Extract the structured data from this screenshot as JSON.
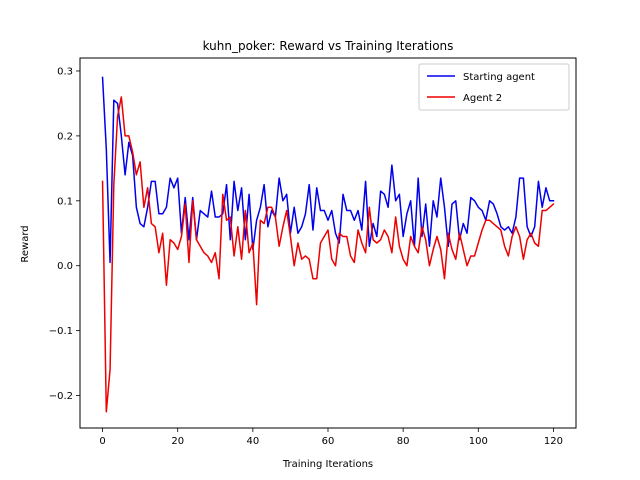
{
  "chart_data": {
    "type": "line",
    "title": "kuhn_poker: Reward vs Training Iterations",
    "xlabel": "Training Iterations",
    "ylabel": "Reward",
    "xlim": [
      -6,
      126
    ],
    "ylim": [
      -0.25,
      0.32
    ],
    "xticks": [
      0,
      20,
      40,
      60,
      80,
      100,
      120
    ],
    "yticks": [
      -0.2,
      -0.1,
      0.0,
      0.1,
      0.2,
      0.3
    ],
    "ytick_labels": [
      "−0.2",
      "−0.1",
      "0.0",
      "0.1",
      "0.2",
      "0.3"
    ],
    "grid": false,
    "legend_position": "top-right",
    "series": [
      {
        "name": "Starting agent",
        "color": "#0000ee",
        "x": [
          0,
          1,
          2,
          3,
          4,
          5,
          6,
          7,
          8,
          9,
          10,
          11,
          12,
          13,
          14,
          15,
          16,
          17,
          18,
          19,
          20,
          21,
          22,
          23,
          24,
          25,
          26,
          27,
          28,
          29,
          30,
          31,
          32,
          33,
          34,
          35,
          36,
          37,
          38,
          39,
          40,
          41,
          42,
          43,
          44,
          45,
          46,
          47,
          48,
          49,
          50,
          51,
          52,
          53,
          54,
          55,
          56,
          57,
          58,
          59,
          60,
          61,
          62,
          63,
          64,
          65,
          66,
          67,
          68,
          69,
          70,
          71,
          72,
          73,
          74,
          75,
          76,
          77,
          78,
          79,
          80,
          81,
          82,
          83,
          84,
          85,
          86,
          87,
          88,
          89,
          90,
          91,
          92,
          93,
          94,
          95,
          96,
          97,
          98,
          99,
          100,
          101,
          102,
          103,
          104,
          105,
          106,
          107,
          108,
          109,
          110,
          111,
          112,
          113,
          114,
          115,
          116,
          117,
          118,
          119,
          120
        ],
        "y": [
          0.29,
          0.18,
          0.005,
          0.255,
          0.25,
          0.2,
          0.14,
          0.19,
          0.17,
          0.09,
          0.065,
          0.06,
          0.09,
          0.13,
          0.13,
          0.08,
          0.08,
          0.09,
          0.135,
          0.12,
          0.135,
          0.05,
          0.105,
          0.04,
          0.105,
          0.04,
          0.085,
          0.08,
          0.075,
          0.115,
          0.075,
          0.075,
          0.08,
          0.125,
          0.04,
          0.13,
          0.085,
          0.12,
          0.04,
          0.11,
          0.025,
          0.07,
          0.09,
          0.125,
          0.06,
          0.085,
          0.075,
          0.135,
          0.1,
          0.11,
          0.05,
          0.09,
          0.05,
          0.06,
          0.08,
          0.125,
          0.055,
          0.12,
          0.085,
          0.085,
          0.07,
          0.085,
          0.05,
          0.035,
          0.11,
          0.085,
          0.085,
          0.07,
          0.085,
          0.055,
          0.13,
          0.03,
          0.065,
          0.045,
          0.115,
          0.11,
          0.09,
          0.155,
          0.1,
          0.11,
          0.045,
          0.08,
          0.1,
          0.03,
          0.135,
          0.045,
          0.095,
          0.03,
          0.1,
          0.075,
          0.135,
          0.09,
          0.03,
          0.095,
          0.1,
          0.04,
          0.065,
          0.05,
          0.105,
          0.1,
          0.09,
          0.085,
          0.07,
          0.1,
          0.095,
          0.08,
          0.06,
          0.055,
          0.06,
          0.05,
          0.075,
          0.135,
          0.135,
          0.06,
          0.045,
          0.06,
          0.13,
          0.09,
          0.12,
          0.1,
          0.1
        ]
      },
      {
        "name": "Agent 2",
        "color": "#ee0000",
        "x": [
          0,
          1,
          2,
          3,
          4,
          5,
          6,
          7,
          8,
          9,
          10,
          11,
          12,
          13,
          14,
          15,
          16,
          17,
          18,
          19,
          20,
          21,
          22,
          23,
          24,
          25,
          26,
          27,
          28,
          29,
          30,
          31,
          32,
          33,
          34,
          35,
          36,
          37,
          38,
          39,
          40,
          41,
          42,
          43,
          44,
          45,
          46,
          47,
          48,
          49,
          50,
          51,
          52,
          53,
          54,
          55,
          56,
          57,
          58,
          59,
          60,
          61,
          62,
          63,
          64,
          65,
          66,
          67,
          68,
          69,
          70,
          71,
          72,
          73,
          74,
          75,
          76,
          77,
          78,
          79,
          80,
          81,
          82,
          83,
          84,
          85,
          86,
          87,
          88,
          89,
          90,
          91,
          92,
          93,
          94,
          95,
          96,
          97,
          98,
          99,
          100,
          101,
          102,
          103,
          104,
          105,
          106,
          107,
          108,
          109,
          110,
          111,
          112,
          113,
          114,
          115,
          116,
          117,
          118,
          119,
          120
        ],
        "y": [
          0.13,
          -0.225,
          -0.16,
          0.125,
          0.23,
          0.26,
          0.2,
          0.2,
          0.175,
          0.14,
          0.16,
          0.09,
          0.12,
          0.065,
          0.06,
          0.02,
          0.05,
          -0.03,
          0.04,
          0.035,
          0.025,
          0.045,
          0.095,
          0.005,
          0.1,
          0.04,
          0.03,
          0.02,
          0.015,
          0.005,
          0.02,
          -0.02,
          0.11,
          0.07,
          0.075,
          0.015,
          0.06,
          0.01,
          0.085,
          0.02,
          0.035,
          -0.06,
          0.07,
          0.065,
          0.09,
          0.09,
          0.075,
          0.03,
          0.06,
          0.085,
          0.045,
          0.0,
          0.035,
          0.01,
          0.015,
          0.01,
          -0.02,
          -0.02,
          0.035,
          0.045,
          0.055,
          0.01,
          0.0,
          0.05,
          0.045,
          0.045,
          0.015,
          0.005,
          0.055,
          0.035,
          0.02,
          0.09,
          0.04,
          0.035,
          0.04,
          0.055,
          0.045,
          0.02,
          0.075,
          0.03,
          0.01,
          0.0,
          0.045,
          0.03,
          0.02,
          0.06,
          0.04,
          0.0,
          0.025,
          0.045,
          0.025,
          -0.02,
          0.05,
          0.025,
          0.01,
          0.05,
          0.025,
          0.0,
          0.015,
          0.015,
          0.035,
          0.055,
          0.07,
          0.07,
          0.065,
          0.06,
          0.055,
          0.03,
          0.015,
          0.045,
          0.06,
          0.045,
          0.01,
          0.04,
          0.05,
          0.035,
          0.03,
          0.085,
          0.085,
          0.09,
          0.095
        ]
      }
    ]
  }
}
